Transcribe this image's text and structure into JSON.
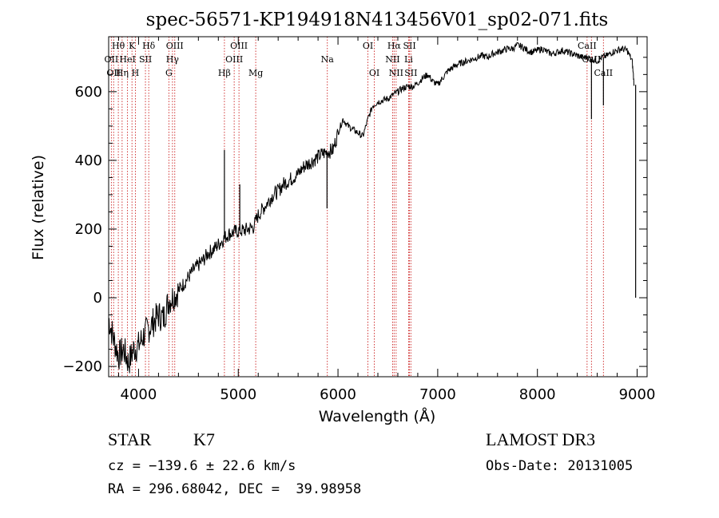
{
  "chart_data": {
    "type": "line",
    "title": "spec-56571-KP194918N413456V01_sp02-071.fits",
    "xlabel": "Wavelength (Å)",
    "ylabel": "Flux (relative)",
    "xlim": [
      3700,
      9100
    ],
    "ylim": [
      -230,
      760
    ],
    "xticks": [
      4000,
      5000,
      6000,
      7000,
      8000,
      9000
    ],
    "yticks": [
      -200,
      0,
      200,
      400,
      600
    ],
    "series": [
      {
        "name": "flux",
        "color": "#000000",
        "points": [
          [
            3700,
            -60
          ],
          [
            3750,
            -120
          ],
          [
            3800,
            -170
          ],
          [
            3850,
            -150
          ],
          [
            3900,
            -190
          ],
          [
            3950,
            -150
          ],
          [
            4000,
            -140
          ],
          [
            4050,
            -110
          ],
          [
            4100,
            -90
          ],
          [
            4150,
            -70
          ],
          [
            4200,
            -50
          ],
          [
            4250,
            -60
          ],
          [
            4300,
            -10
          ],
          [
            4350,
            5
          ],
          [
            4400,
            20
          ],
          [
            4450,
            40
          ],
          [
            4500,
            60
          ],
          [
            4550,
            80
          ],
          [
            4600,
            95
          ],
          [
            4650,
            110
          ],
          [
            4700,
            130
          ],
          [
            4750,
            140
          ],
          [
            4800,
            155
          ],
          [
            4850,
            170
          ],
          [
            4900,
            185
          ],
          [
            4950,
            190
          ],
          [
            5000,
            195
          ],
          [
            5050,
            195
          ],
          [
            5100,
            200
          ],
          [
            5150,
            205
          ],
          [
            5200,
            240
          ],
          [
            5250,
            260
          ],
          [
            5300,
            280
          ],
          [
            5350,
            300
          ],
          [
            5400,
            310
          ],
          [
            5450,
            330
          ],
          [
            5500,
            340
          ],
          [
            5550,
            350
          ],
          [
            5600,
            360
          ],
          [
            5650,
            380
          ],
          [
            5700,
            390
          ],
          [
            5750,
            400
          ],
          [
            5800,
            410
          ],
          [
            5850,
            420
          ],
          [
            5900,
            425
          ],
          [
            5950,
            430
          ],
          [
            6000,
            480
          ],
          [
            6050,
            520
          ],
          [
            6100,
            500
          ],
          [
            6150,
            490
          ],
          [
            6200,
            480
          ],
          [
            6250,
            470
          ],
          [
            6300,
            520
          ],
          [
            6350,
            560
          ],
          [
            6400,
            570
          ],
          [
            6450,
            575
          ],
          [
            6500,
            580
          ],
          [
            6550,
            590
          ],
          [
            6600,
            600
          ],
          [
            6650,
            610
          ],
          [
            6700,
            615
          ],
          [
            6750,
            615
          ],
          [
            6800,
            625
          ],
          [
            6850,
            640
          ],
          [
            6900,
            650
          ],
          [
            6950,
            630
          ],
          [
            7000,
            620
          ],
          [
            7050,
            640
          ],
          [
            7100,
            660
          ],
          [
            7150,
            670
          ],
          [
            7200,
            680
          ],
          [
            7250,
            685
          ],
          [
            7300,
            690
          ],
          [
            7350,
            695
          ],
          [
            7400,
            700
          ],
          [
            7450,
            705
          ],
          [
            7500,
            700
          ],
          [
            7550,
            710
          ],
          [
            7600,
            715
          ],
          [
            7650,
            720
          ],
          [
            7700,
            725
          ],
          [
            7750,
            725
          ],
          [
            7800,
            735
          ],
          [
            7850,
            730
          ],
          [
            7900,
            720
          ],
          [
            7950,
            715
          ],
          [
            8000,
            720
          ],
          [
            8050,
            725
          ],
          [
            8100,
            715
          ],
          [
            8150,
            710
          ],
          [
            8200,
            715
          ],
          [
            8250,
            720
          ],
          [
            8300,
            715
          ],
          [
            8350,
            710
          ],
          [
            8400,
            705
          ],
          [
            8450,
            700
          ],
          [
            8500,
            700
          ],
          [
            8550,
            695
          ],
          [
            8600,
            690
          ],
          [
            8650,
            700
          ],
          [
            8700,
            705
          ],
          [
            8750,
            715
          ],
          [
            8800,
            720
          ],
          [
            8850,
            725
          ],
          [
            8900,
            720
          ],
          [
            8950,
            690
          ],
          [
            8970,
            620
          ]
        ]
      }
    ],
    "spikes": [
      {
        "x": 4861,
        "y": 430
      },
      {
        "x": 5015,
        "y": 330
      },
      {
        "x": 5890,
        "y": 260
      },
      {
        "x": 8542,
        "y": 520
      },
      {
        "x": 8662,
        "y": 560
      },
      {
        "x": 8985,
        "y": 0
      }
    ],
    "lines": [
      {
        "wave": 3727,
        "label": "OII",
        "row": 1
      },
      {
        "wave": 3750,
        "label": "OII",
        "row": 2
      },
      {
        "wave": 3797,
        "label": "Hθ",
        "row": 0
      },
      {
        "wave": 3835,
        "label": "Hη",
        "row": 2
      },
      {
        "wave": 3889,
        "label": "HeI",
        "row": 1
      },
      {
        "wave": 3934,
        "label": "K",
        "row": 0
      },
      {
        "wave": 3968,
        "label": "H",
        "row": 2
      },
      {
        "wave": 4069,
        "label": "SII",
        "row": 1
      },
      {
        "wave": 4102,
        "label": "Hδ",
        "row": 0
      },
      {
        "wave": 4304,
        "label": "G",
        "row": 2
      },
      {
        "wave": 4340,
        "label": "Hγ",
        "row": 1
      },
      {
        "wave": 4363,
        "label": "OIII",
        "row": 0
      },
      {
        "wave": 4861,
        "label": "Hβ",
        "row": 2
      },
      {
        "wave": 4959,
        "label": "OIII",
        "row": 1
      },
      {
        "wave": 5007,
        "label": "OIII",
        "row": 0
      },
      {
        "wave": 5175,
        "label": "Mg",
        "row": 2
      },
      {
        "wave": 5893,
        "label": "Na",
        "row": 1
      },
      {
        "wave": 6300,
        "label": "OI",
        "row": 0
      },
      {
        "wave": 6364,
        "label": "OI",
        "row": 2
      },
      {
        "wave": 6548,
        "label": "NII",
        "row": 1
      },
      {
        "wave": 6563,
        "label": "Hα",
        "row": 0
      },
      {
        "wave": 6583,
        "label": "NII",
        "row": 2
      },
      {
        "wave": 6708,
        "label": "Li",
        "row": 1
      },
      {
        "wave": 6717,
        "label": "SII",
        "row": 0
      },
      {
        "wave": 6731,
        "label": "SII",
        "row": 2
      },
      {
        "wave": 8498,
        "label": "CaII",
        "row": 0
      },
      {
        "wave": 8542,
        "label": "CaII",
        "row": 1
      },
      {
        "wave": 8662,
        "label": "CaII",
        "row": 2
      }
    ],
    "line_color": "#cc2222"
  },
  "info": {
    "class_label": "STAR",
    "subclass": "K7",
    "cz": "cz = −139.6 ± 22.6 km/s",
    "radec": "RA = 296.68042, DEC =  39.98958",
    "survey": "LAMOST DR3",
    "obs_date": "Obs-Date: 20131005"
  }
}
